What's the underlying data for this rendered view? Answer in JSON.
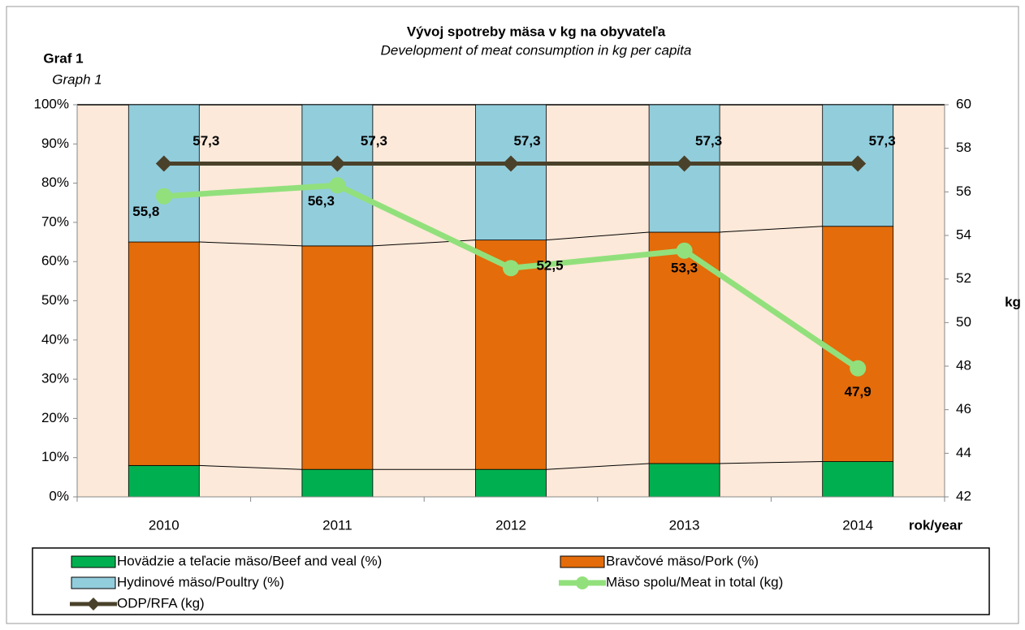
{
  "chart_data": {
    "type": "bar",
    "stacked": true,
    "label": "Graf 1",
    "label_en": "Graph 1",
    "title": "Vývoj spotreby mäsa v kg na obyvateľa",
    "subtitle": "Development of meat consumption in kg per capita",
    "x_label": "rok/year",
    "y2_label": "kg",
    "categories": [
      "2010",
      "2011",
      "2012",
      "2013",
      "2014"
    ],
    "ylim": [
      0,
      100
    ],
    "yticks": [
      {
        "value": 0,
        "label": "0%"
      },
      {
        "value": 10,
        "label": "10%"
      },
      {
        "value": 20,
        "label": "20%"
      },
      {
        "value": 30,
        "label": "30%"
      },
      {
        "value": 40,
        "label": "40%"
      },
      {
        "value": 50,
        "label": "50%"
      },
      {
        "value": 60,
        "label": "60%"
      },
      {
        "value": 70,
        "label": "70%"
      },
      {
        "value": 80,
        "label": "80%"
      },
      {
        "value": 90,
        "label": "90%"
      },
      {
        "value": 100,
        "label": "100%"
      }
    ],
    "y2lim": [
      42,
      60
    ],
    "y2ticks": [
      42,
      44,
      46,
      48,
      50,
      52,
      54,
      56,
      58,
      60
    ],
    "series": [
      {
        "name": "Hovädzie a teľacie mäso/Beef and veal (%)",
        "type": "bar",
        "color": "#00b050",
        "values": [
          8,
          7,
          7,
          8.5,
          9
        ]
      },
      {
        "name": "Bravčové mäso/Pork (%)",
        "type": "bar",
        "color": "#e46c0a",
        "values": [
          57,
          57,
          58.5,
          59,
          60
        ]
      },
      {
        "name": "Hydinové mäso/Poultry (%)",
        "type": "bar",
        "color": "#92cddc",
        "values": [
          35,
          36,
          34.5,
          32.5,
          31
        ]
      },
      {
        "name": "Mäso spolu/Meat  in total (kg)",
        "type": "line",
        "axis": "y2",
        "color": "#92e07c",
        "values": [
          55.8,
          56.3,
          52.5,
          53.3,
          47.9
        ],
        "value_labels": [
          "55,8",
          "56,3",
          "52,5",
          "53,3",
          "47,9"
        ]
      },
      {
        "name": "ODP/RFA (kg)",
        "type": "line",
        "axis": "y2",
        "color": "#4a412a",
        "values": [
          57.3,
          57.3,
          57.3,
          57.3,
          57.3
        ],
        "value_labels": [
          "57,3",
          "57,3",
          "57,3",
          "57,3",
          "57,3"
        ]
      }
    ]
  }
}
